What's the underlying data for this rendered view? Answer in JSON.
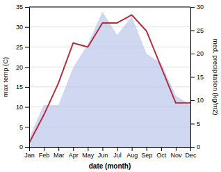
{
  "chart_data": {
    "type": "line",
    "xlabel": "date (month)",
    "ylabel": "max temp (C)",
    "y2label": "med. precipitation (kg/m2)",
    "categories": [
      "Jan",
      "Feb",
      "Mar",
      "Apr",
      "May",
      "Jun",
      "Jul",
      "Aug",
      "Sep",
      "Oct",
      "Nov",
      "Dec"
    ],
    "series": [
      {
        "type": "area",
        "axis": "y2",
        "color": "#b0bce8",
        "values": [
          2,
          9,
          9,
          17,
          22,
          29,
          24,
          28,
          20,
          18,
          11,
          9
        ]
      },
      {
        "type": "line",
        "color": "#b03040",
        "values": [
          1,
          8,
          16,
          26,
          25,
          31,
          31,
          33,
          29,
          20,
          11,
          11
        ]
      }
    ],
    "ylim": [
      0,
      35
    ],
    "yticks": [
      0,
      5,
      10,
      15,
      20,
      25,
      30,
      35
    ],
    "y2lim": [
      0,
      30
    ],
    "y2ticks": [
      0,
      5,
      10,
      15,
      20,
      25,
      30
    ],
    "grid": true
  }
}
